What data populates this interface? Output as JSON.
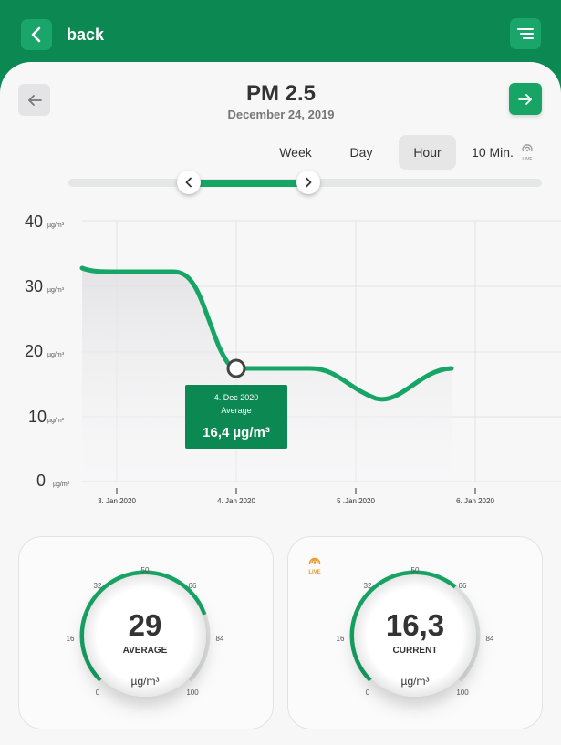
{
  "header": {
    "back_label": "back"
  },
  "title": "PM 2.5",
  "subtitle": "December 24, 2019",
  "tabs": [
    {
      "label": "Week",
      "active": false
    },
    {
      "label": "Day",
      "active": false
    },
    {
      "label": "Hour",
      "active": true
    },
    {
      "label": "10 Min.",
      "active": false
    }
  ],
  "live_label": "LIVE",
  "colors": {
    "brand": "#0c8853",
    "accent": "#17a565",
    "live": "#e89a2b"
  },
  "chart_data": {
    "type": "line",
    "y_ticks": [
      "40",
      "30",
      "20",
      "10",
      "0"
    ],
    "y_unit": "µg/m³",
    "x_ticks": [
      "3. Jan 2020",
      "4. Jan 2020",
      "5 .Jan 2020",
      "6. Jan 2020"
    ],
    "ylim": [
      0,
      40
    ],
    "grid": true,
    "tooltip": {
      "date": "4. Dec 2020",
      "label": "Average",
      "value": "16,4 µg/m³"
    }
  },
  "gauges": [
    {
      "value": "29",
      "label": "AVERAGE",
      "unit": "µg/m³",
      "fraction": 0.29,
      "ticks": [
        "0",
        "16",
        "32",
        "50",
        "66",
        "84",
        "100"
      ],
      "live": false
    },
    {
      "value": "16,3",
      "label": "CURRENT",
      "unit": "µg/m³",
      "fraction": 0.163,
      "ticks": [
        "0",
        "16",
        "32",
        "50",
        "66",
        "84",
        "100"
      ],
      "live": true
    }
  ]
}
